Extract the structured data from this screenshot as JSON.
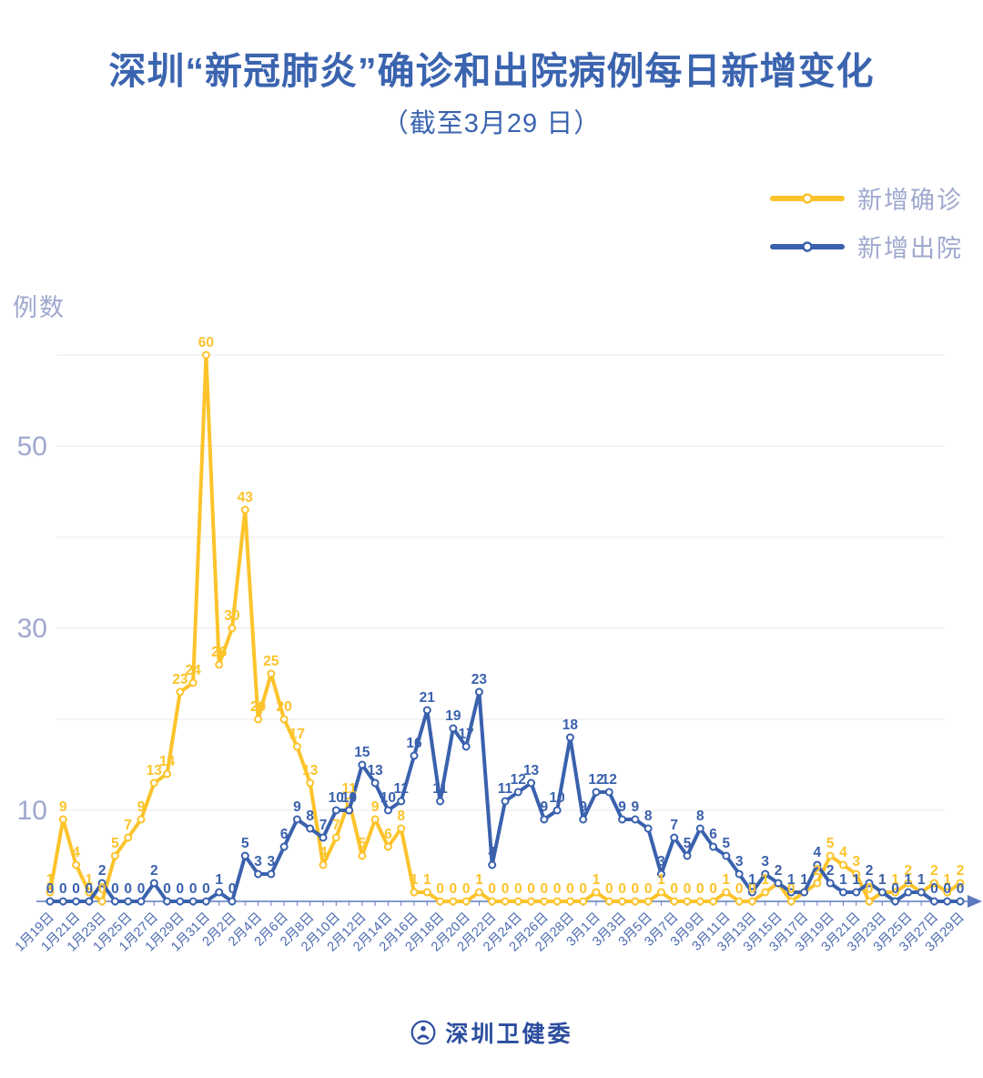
{
  "header": {
    "title": "深圳“新冠肺炎”确诊和出院病例每日新增变化",
    "subtitle": "（截至3月29 日）"
  },
  "footer": {
    "org_name": "深圳卫健委"
  },
  "colors": {
    "title_text": "#3B64AF",
    "muted_axis_text": "#9FA8CE",
    "date_label_text": "#4C6BB2",
    "axis_line": "#5E7ABF",
    "gridline": "#E9E9EE",
    "footer_text": "#2B4D9E",
    "series_confirmed": "#FCC32B",
    "series_discharged": "#3A61AD"
  },
  "chart_data": {
    "type": "line",
    "title": "深圳“新冠肺炎”确诊和出院病例每日新增变化",
    "subtitle": "（截至3月29 日）",
    "ylabel": "例数",
    "xlabel": "",
    "ylim": [
      0,
      63
    ],
    "y_ticks_labeled": [
      10,
      30,
      50
    ],
    "gridlines": [
      10,
      20,
      30,
      40,
      50,
      60
    ],
    "x_label_every": 2,
    "legend_position": "top-right",
    "point_labels": true,
    "categories": [
      "1月19日",
      "1月20日",
      "1月21日",
      "1月22日",
      "1月23日",
      "1月24日",
      "1月25日",
      "1月26日",
      "1月27日",
      "1月28日",
      "1月29日",
      "1月30日",
      "1月31日",
      "2月1日",
      "2月2日",
      "2月3日",
      "2月4日",
      "2月5日",
      "2月6日",
      "2月7日",
      "2月8日",
      "2月9日",
      "2月10日",
      "2月11日",
      "2月12日",
      "2月13日",
      "2月14日",
      "2月15日",
      "2月16日",
      "2月17日",
      "2月18日",
      "2月19日",
      "2月20日",
      "2月21日",
      "2月22日",
      "2月23日",
      "2月24日",
      "2月25日",
      "2月26日",
      "2月27日",
      "2月28日",
      "2月29日",
      "3月1日",
      "3月2日",
      "3月3日",
      "3月4日",
      "3月5日",
      "3月6日",
      "3月7日",
      "3月8日",
      "3月9日",
      "3月10日",
      "3月11日",
      "3月12日",
      "3月13日",
      "3月14日",
      "3月15日",
      "3月16日",
      "3月17日",
      "3月18日",
      "3月19日",
      "3月20日",
      "3月21日",
      "3月22日",
      "3月23日",
      "3月24日",
      "3月25日",
      "3月26日",
      "3月27日",
      "3月28日",
      "3月29日"
    ],
    "series": [
      {
        "name": "新增确诊",
        "color": "#FCC32B",
        "values": [
          1,
          9,
          4,
          1,
          0,
          5,
          7,
          9,
          13,
          14,
          23,
          24,
          60,
          26,
          30,
          43,
          20,
          25,
          20,
          17,
          13,
          4,
          7,
          11,
          5,
          9,
          6,
          8,
          1,
          1,
          0,
          0,
          0,
          1,
          0,
          0,
          0,
          0,
          0,
          0,
          0,
          0,
          1,
          0,
          0,
          0,
          0,
          1,
          0,
          0,
          0,
          0,
          1,
          0,
          0,
          1,
          2,
          0,
          1,
          2,
          5,
          4,
          3,
          0,
          1,
          1,
          2,
          1,
          2,
          1,
          2
        ]
      },
      {
        "name": "新增出院",
        "color": "#3A61AD",
        "values": [
          0,
          0,
          0,
          0,
          2,
          0,
          0,
          0,
          2,
          0,
          0,
          0,
          0,
          1,
          0,
          5,
          3,
          3,
          6,
          9,
          8,
          7,
          10,
          10,
          15,
          13,
          10,
          11,
          16,
          21,
          11,
          19,
          17,
          23,
          4,
          11,
          12,
          13,
          9,
          10,
          18,
          9,
          12,
          12,
          9,
          9,
          8,
          3,
          7,
          5,
          8,
          6,
          5,
          3,
          1,
          3,
          2,
          1,
          1,
          4,
          2,
          1,
          1,
          2,
          1,
          0,
          1,
          1,
          0,
          0,
          0
        ]
      }
    ]
  }
}
